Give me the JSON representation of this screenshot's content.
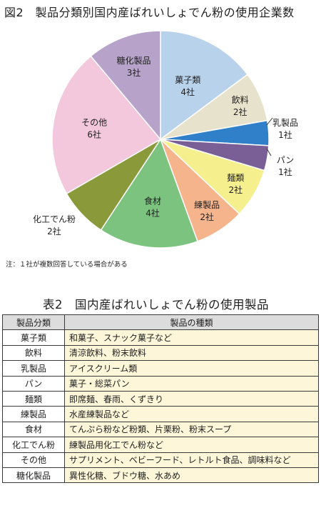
{
  "figure": {
    "title": "図2　製品分類別国内産ばれいしょでん粉の使用企業数",
    "note": "注：１社が複数回答している場合がある"
  },
  "chart_data": {
    "type": "pie",
    "title": "図2　製品分類別国内産ばれいしょでん粉の使用企業数",
    "unit": "社",
    "slices": [
      {
        "label": "菓子類",
        "value": 4,
        "value_label": "4社",
        "color": "#b9d2ec"
      },
      {
        "label": "飲料",
        "value": 2,
        "value_label": "2社",
        "color": "#e6e2cc"
      },
      {
        "label": "乳製品",
        "value": 1,
        "value_label": "1社",
        "color": "#2f80c8"
      },
      {
        "label": "パン",
        "value": 1,
        "value_label": "1社",
        "color": "#7a5e96"
      },
      {
        "label": "麺類",
        "value": 2,
        "value_label": "2社",
        "color": "#f6ef8e"
      },
      {
        "label": "練製品",
        "value": 2,
        "value_label": "2社",
        "color": "#f6b48d"
      },
      {
        "label": "食材",
        "value": 4,
        "value_label": "4社",
        "color": "#7cc380"
      },
      {
        "label": "化工でん粉",
        "value": 2,
        "value_label": "2社",
        "color": "#8a9a3a"
      },
      {
        "label": "その他",
        "value": 6,
        "value_label": "6社",
        "color": "#f3c8dd"
      },
      {
        "label": "糖化製品",
        "value": 3,
        "value_label": "3社",
        "color": "#b7a2c9"
      }
    ]
  },
  "table": {
    "title": "表2　国内産ばれいしょでん粉の使用製品",
    "headers": [
      "製品分類",
      "製品の種類"
    ],
    "rows": [
      {
        "category": "菓子類",
        "examples": "和菓子、スナック菓子など"
      },
      {
        "category": "飲料",
        "examples": "清涼飲料、粉末飲料"
      },
      {
        "category": "乳製品",
        "examples": "アイスクリーム類"
      },
      {
        "category": "パン",
        "examples": "菓子・総菜パン"
      },
      {
        "category": "麺類",
        "examples": "即席麺、春雨、くずきり"
      },
      {
        "category": "練製品",
        "examples": "水産練製品など"
      },
      {
        "category": "食材",
        "examples": "てんぷら粉など粉類、片栗粉、粉末スープ"
      },
      {
        "category": "化工でん粉",
        "examples": "練製品用化工でん粉など"
      },
      {
        "category": "その他",
        "examples": "サプリメント、ベビーフード、レトルト食品、調味料など"
      },
      {
        "category": "糖化製品",
        "examples": "異性化糖、ブドウ糖、水あめ"
      }
    ]
  }
}
